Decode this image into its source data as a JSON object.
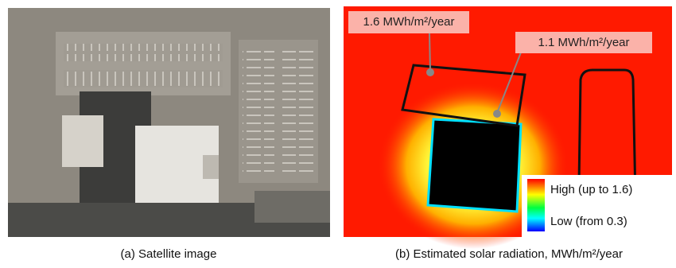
{
  "panels": [
    {
      "caption": "(a) Satellite image"
    },
    {
      "caption": "(b) Estimated solar radiation, MWh/m²/year",
      "annotations": [
        "1.6 MWh/m²/year",
        "1.1 MWh/m²/year"
      ],
      "legend": {
        "high": "High (up to 1.6)",
        "low": "Low (from 0.3)"
      }
    }
  ]
}
